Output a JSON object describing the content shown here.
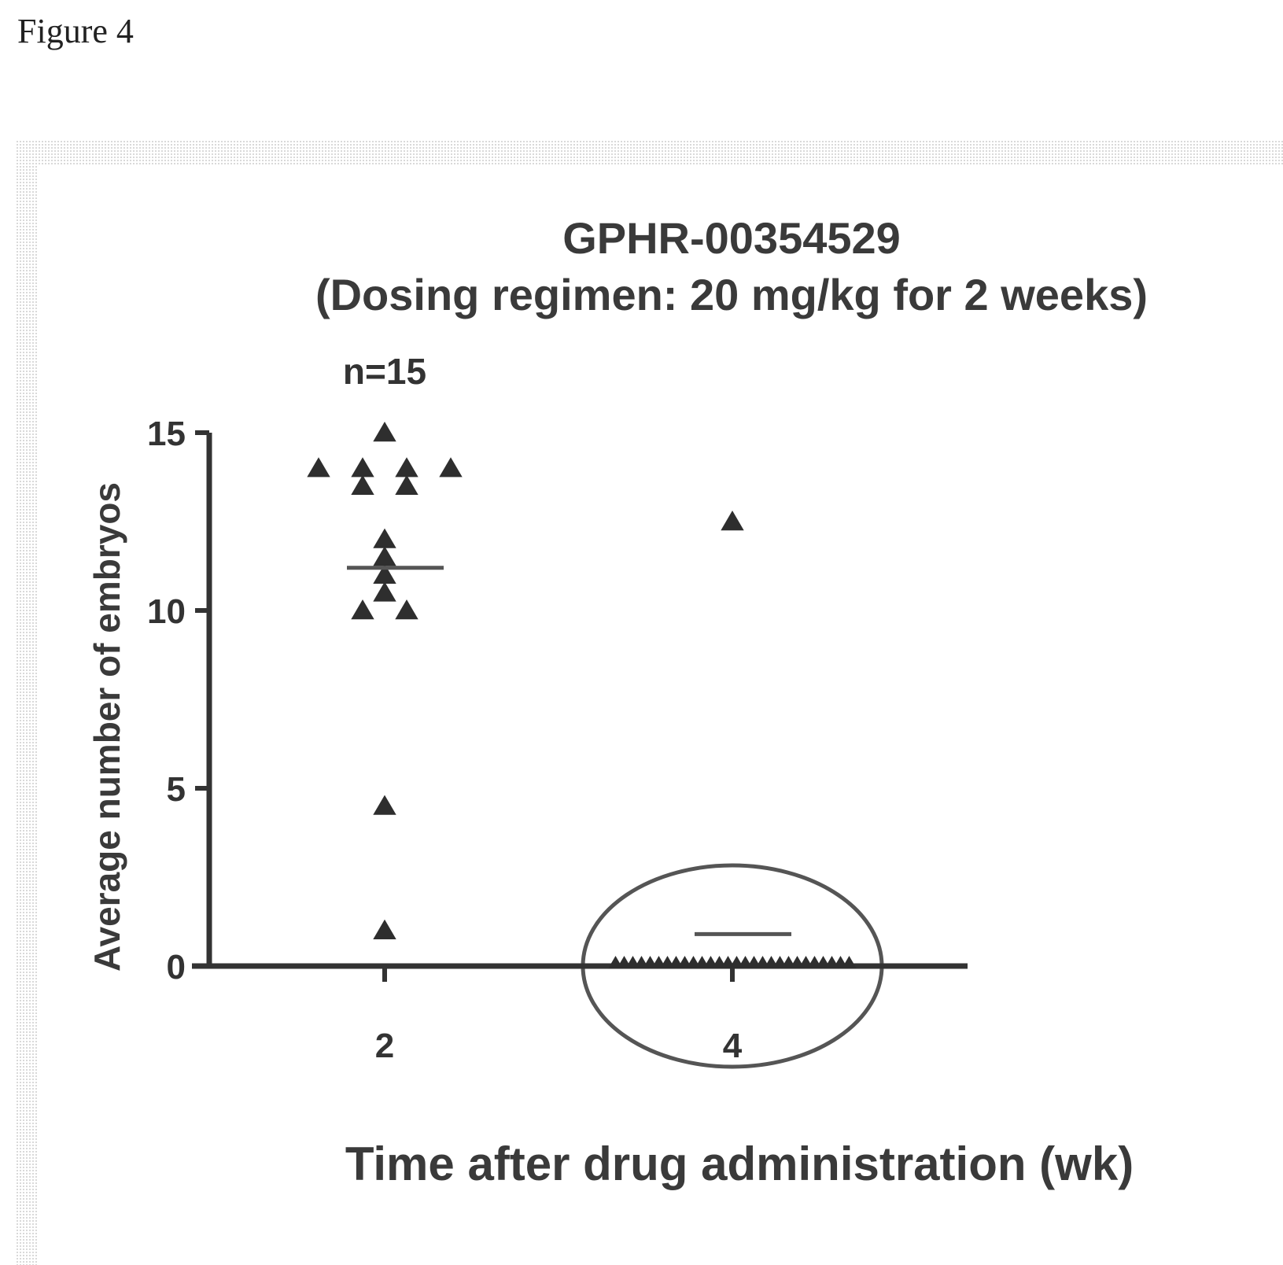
{
  "figure_label": "Figure 4",
  "chart_data": {
    "type": "scatter",
    "title": "GPHR-00354529",
    "subtitle": "(Dosing regimen: 20 mg/kg for 2 weeks)",
    "xlabel": "Time after drug administration (wk)",
    "ylabel": "Average number of embryos",
    "ylim": [
      0,
      15
    ],
    "yticks": [
      0,
      5,
      10,
      15
    ],
    "categories": [
      "2",
      "4"
    ],
    "annotations": [
      {
        "category": "2",
        "text": "n=15"
      }
    ],
    "groups": [
      {
        "category": "2",
        "mean": 11.2,
        "points": [
          13.5,
          14,
          14,
          14,
          15,
          13.5,
          14,
          11.5,
          12,
          11,
          10.5,
          10,
          10,
          4.5,
          1
        ]
      },
      {
        "category": "4",
        "mean": 0.9,
        "points": [
          12.5,
          0,
          0,
          0,
          0,
          0,
          0,
          0,
          0,
          0,
          0,
          0,
          0,
          0,
          0,
          0,
          0,
          0,
          0,
          0,
          0,
          0,
          0,
          0,
          0,
          0,
          0,
          0,
          0
        ],
        "highlighted": true
      }
    ],
    "marker": "triangle",
    "grid": false,
    "colors": {
      "marker": "#2e2e2e",
      "axis": "#333333",
      "mean_line": "#555555",
      "ellipse": "#555555"
    }
  }
}
